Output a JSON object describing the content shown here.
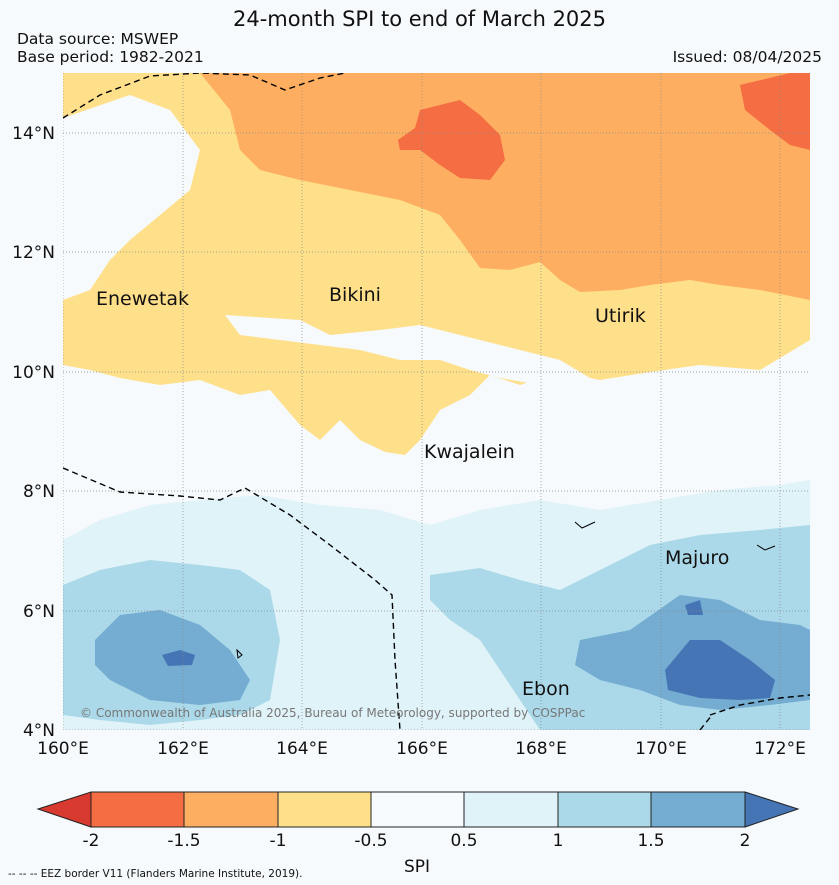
{
  "title": "24-month SPI to end of March 2025",
  "data_source": "Data source: MSWEP",
  "base_period": "Base period: 1982-2021",
  "issued": "Issued: 08/04/2025",
  "copyright": "© Commonwealth of Australia 2025, Bureau of Meteorology, supported by COSPPac",
  "footnote": "-- -- -- EEZ border V11 (Flanders Marine Institute, 2019).",
  "map": {
    "lat_labels": [
      "14°N",
      "12°N",
      "10°N",
      "8°N",
      "6°N",
      "4°N"
    ],
    "lon_labels": [
      "160°E",
      "162°E",
      "164°E",
      "166°E",
      "168°E",
      "170°E",
      "172°E"
    ],
    "places": [
      "Enewetak",
      "Bikini",
      "Utirik",
      "Kwajalein",
      "Majuro",
      "Ebon"
    ]
  },
  "legend": {
    "label": "SPI",
    "ticks": [
      "-2",
      "-1.5",
      "-1",
      "-0.5",
      "0.5",
      "1",
      "1.5",
      "2"
    ],
    "colors": [
      "#d93a2f",
      "#f46d43",
      "#fdae61",
      "#fee08b",
      "#f6fafc",
      "#e0f3f8",
      "#abd9e9",
      "#74add1",
      "#4575b4"
    ]
  }
}
